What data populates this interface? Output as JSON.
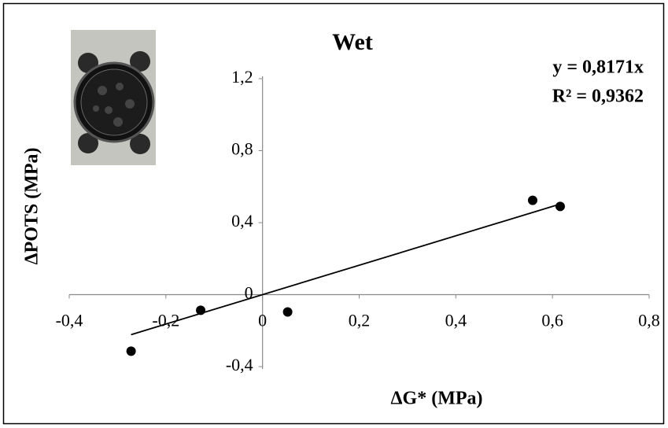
{
  "chart_data": {
    "type": "scatter",
    "title": "Wet",
    "x_label": "ΔG* (MPa)",
    "y_label": "ΔPOTS (MPa)",
    "x": [
      -0.272,
      -0.128,
      0.052,
      0.559,
      0.616
    ],
    "series": [
      {
        "color": "#000000",
        "values": [
          -0.314,
          -0.087,
          -0.096,
          0.524,
          0.49
        ]
      }
    ],
    "trendline": {
      "slope": 0.8171,
      "x_range": [
        -0.272,
        0.62
      ],
      "color": "#000000",
      "equation": "y = 0,8171x",
      "r_squared": "R² = 0,9362"
    },
    "xlim": [
      -0.4,
      0.8
    ],
    "xticks": [
      {
        "value": -0.4,
        "label": "-0,4"
      },
      {
        "value": -0.2,
        "label": "-0,2"
      },
      0,
      {
        "value": 0.2,
        "label": "0,2"
      },
      {
        "value": 0.4,
        "label": "0,4"
      },
      {
        "value": 0.6,
        "label": "0,6"
      },
      {
        "value": 0.8,
        "label": "0,8"
      }
    ],
    "ylim": [
      -0.4,
      1.2
    ],
    "yticks": [
      {
        "value": -0.4,
        "label": "-0,4"
      },
      0,
      {
        "value": 0.4,
        "label": "0,4"
      },
      {
        "value": 0.8,
        "label": "0,8"
      },
      {
        "value": 1.2,
        "label": "1,2"
      }
    ],
    "grid": false
  }
}
